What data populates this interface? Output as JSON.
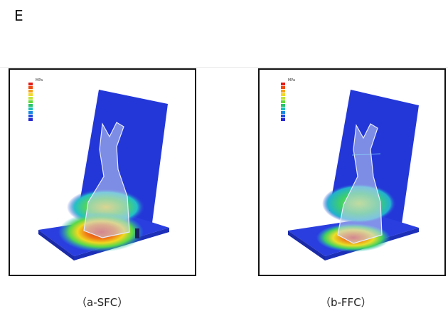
{
  "panel_letter": "E",
  "panels": [
    {
      "caption": "（a-SFC）",
      "legend_unit": "MPa"
    },
    {
      "caption": "（b-FFC）",
      "legend_unit": "MPa"
    }
  ],
  "colors": {
    "plate": "#2a3ad6",
    "high": "#e02a1a",
    "mid": "#f0d820",
    "low": "#2ec06a",
    "tooth": "#c8d4f0"
  },
  "legend_colors": [
    "#e21a14",
    "#f04a10",
    "#f6a018",
    "#f2d82a",
    "#bfe63a",
    "#64da38",
    "#26c46a",
    "#16c0b8",
    "#1a8ae0",
    "#1a4ae0",
    "#2a2ad0"
  ]
}
